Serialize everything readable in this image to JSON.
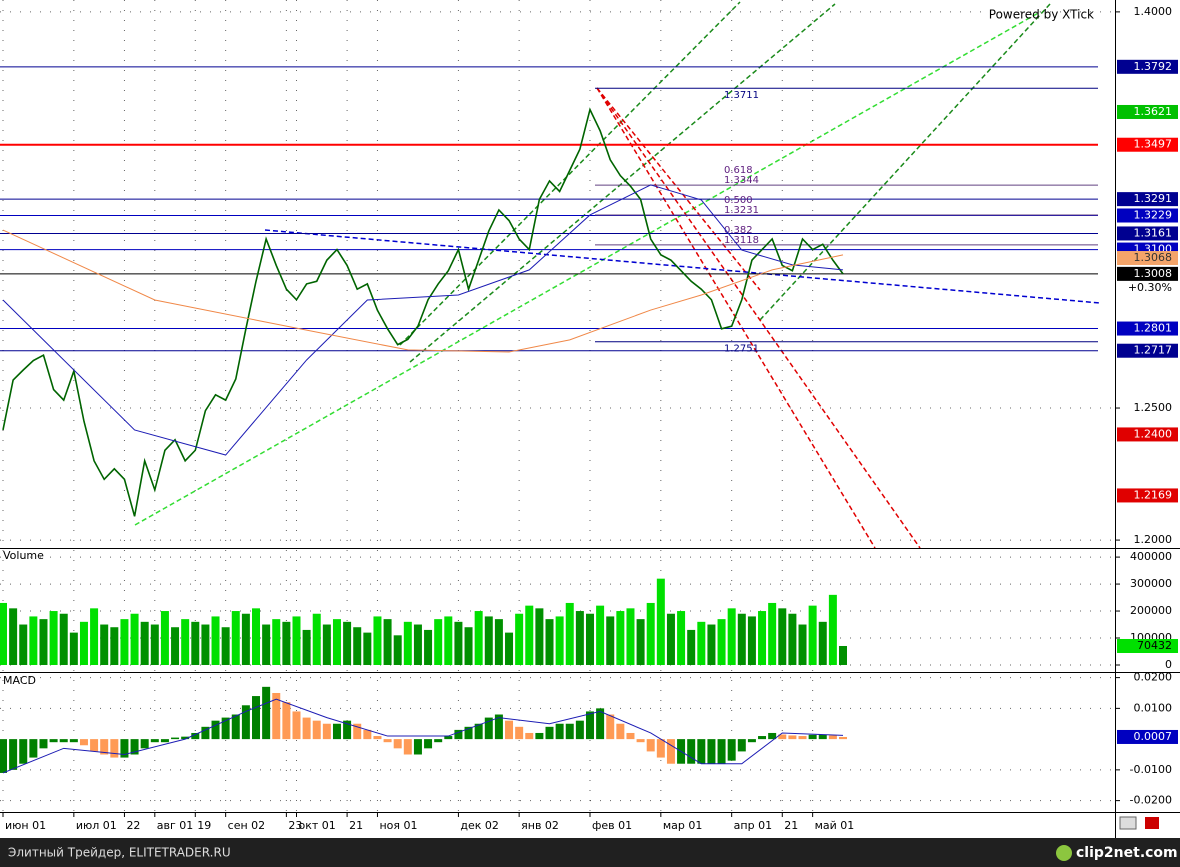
{
  "chart_data": [
    {
      "type": "line",
      "credit": "Powered by XTick",
      "categories": [
        "июн 01",
        null,
        null,
        null,
        null,
        null,
        null,
        "июл 01",
        null,
        null,
        null,
        null,
        "22",
        null,
        null,
        "авг 01",
        null,
        null,
        null,
        "19",
        null,
        null,
        "сен 02",
        null,
        null,
        null,
        null,
        null,
        "23",
        "окт 01",
        null,
        null,
        null,
        null,
        "21",
        null,
        null,
        "ноя 01",
        null,
        null,
        null,
        null,
        null,
        null,
        null,
        "дек 02",
        null,
        null,
        null,
        null,
        null,
        "янв 02",
        null,
        null,
        null,
        null,
        null,
        null,
        "фев 01",
        null,
        null,
        null,
        null,
        null,
        null,
        "мар 01",
        null,
        null,
        null,
        null,
        null,
        null,
        "апр 01",
        null,
        null,
        null,
        null,
        "21",
        null,
        null,
        "май 01",
        null,
        null,
        null
      ],
      "series": [
        {
          "color": "#006400",
          "values": [
            1.2417,
            1.2606,
            1.2644,
            1.268,
            1.27,
            1.257,
            1.253,
            1.264,
            1.245,
            1.23,
            1.223,
            1.227,
            1.223,
            1.209,
            1.23,
            1.219,
            1.234,
            1.238,
            1.23,
            1.234,
            1.249,
            1.255,
            1.253,
            1.261,
            1.28,
            1.298,
            1.314,
            1.304,
            1.295,
            1.291,
            1.297,
            1.298,
            1.306,
            1.31,
            1.304,
            1.295,
            1.297,
            1.287,
            1.28,
            1.274,
            1.276,
            1.281,
            1.291,
            1.297,
            1.302,
            1.31,
            1.295,
            1.306,
            1.317,
            1.325,
            1.321,
            1.314,
            1.31,
            1.329,
            1.336,
            1.332,
            1.34,
            1.348,
            1.363,
            1.355,
            1.344,
            1.338,
            1.334,
            1.329,
            1.314,
            1.308,
            1.306,
            1.302,
            1.298,
            1.295,
            1.291,
            1.28,
            1.281,
            1.291,
            1.306,
            1.31,
            1.314,
            1.304,
            1.302,
            1.314,
            1.31,
            1.312,
            1.306,
            1.3008
          ]
        },
        {
          "color": "#1c1cb4",
          "x": [
            0,
            13,
            22,
            30,
            36,
            45,
            52,
            58,
            64,
            69,
            73,
            78,
            83
          ],
          "values": [
            1.2909,
            1.2417,
            1.2322,
            1.2682,
            1.2909,
            1.2928,
            1.3023,
            1.3231,
            1.3345,
            1.3288,
            1.3098,
            1.3042,
            1.3023
          ]
        },
        {
          "color": "#f08848",
          "x": [
            0,
            15,
            25,
            30,
            40,
            50,
            56,
            64,
            69,
            76,
            83
          ],
          "values": [
            1.3174,
            1.2909,
            1.2833,
            1.2795,
            1.272,
            1.2712,
            1.2758,
            1.2871,
            1.2928,
            1.3023,
            1.308
          ]
        }
      ],
      "ylim": [
        1.197,
        1.4045
      ],
      "yticks": [
        {
          "value": 1.4,
          "label": "1.4000"
        },
        {
          "value": 1.25,
          "label": "1.2500"
        },
        {
          "value": 1.2,
          "label": "1.2000"
        }
      ],
      "levels": [
        {
          "value": 1.3792,
          "label": "1.3792",
          "color": "#000090",
          "line": true
        },
        {
          "value": 1.3621,
          "label": "1.3621",
          "color": "#00c000",
          "line": false
        },
        {
          "value": 1.3497,
          "label": "1.3497",
          "color": "#ff0000",
          "line": true
        },
        {
          "value": 1.3291,
          "label": "1.3291",
          "color": "#000090",
          "line": true
        },
        {
          "value": 1.3229,
          "label": "1.3229",
          "color": "#0000c0",
          "line": true
        },
        {
          "value": 1.3161,
          "label": "1.3161",
          "color": "#000090",
          "line": true
        },
        {
          "value": 1.31,
          "label": "1.3100",
          "color": "#0000c0",
          "line": true
        },
        {
          "value": 1.3068,
          "label": "1.3068",
          "color": "#f4a46a",
          "line": false
        },
        {
          "value": 1.3008,
          "label": "1.3008",
          "color": "#000000",
          "line": true
        },
        {
          "value": 1.2801,
          "label": "1.2801",
          "color": "#0000c0",
          "line": true
        },
        {
          "value": 1.2717,
          "label": "1.2717",
          "color": "#000090",
          "line": true
        },
        {
          "value": 1.24,
          "label": "1.2400",
          "color": "#e00000",
          "line": false
        },
        {
          "value": 1.2169,
          "label": "1.2169",
          "color": "#e00000",
          "line": false
        }
      ],
      "change": {
        "value": 0.3,
        "label": "+0.30%"
      },
      "fibonacci": [
        {
          "ratio": {
            "value": 0.618,
            "label": "0.618"
          },
          "price": 1.3344
        },
        {
          "ratio": {
            "value": 0.5,
            "label": "0.500"
          },
          "price": 1.3231
        },
        {
          "ratio": {
            "value": 0.382,
            "label": "0.382"
          },
          "price": 1.3118
        }
      ],
      "annotations": [
        {
          "price": 1.3711
        },
        {
          "price": 1.2751
        }
      ],
      "grid": true
    },
    {
      "type": "bar",
      "title": "Volume",
      "color": "#00e000",
      "values": [
        230000,
        210000,
        150000,
        180000,
        170000,
        200000,
        190000,
        120000,
        160000,
        210000,
        150000,
        140000,
        170000,
        190000,
        160000,
        150000,
        200000,
        140000,
        170000,
        160000,
        150000,
        180000,
        140000,
        200000,
        190000,
        210000,
        150000,
        170000,
        160000,
        180000,
        130000,
        190000,
        150000,
        170000,
        160000,
        140000,
        120000,
        180000,
        170000,
        110000,
        160000,
        150000,
        130000,
        170000,
        180000,
        160000,
        140000,
        200000,
        180000,
        170000,
        120000,
        190000,
        220000,
        210000,
        170000,
        180000,
        230000,
        200000,
        190000,
        220000,
        180000,
        200000,
        210000,
        170000,
        230000,
        320000,
        190000,
        200000,
        130000,
        160000,
        150000,
        170000,
        210000,
        190000,
        180000,
        200000,
        230000,
        210000,
        190000,
        150000,
        220000,
        160000,
        260000,
        70432
      ],
      "last": 70432,
      "ylim": [
        -26000,
        430000
      ],
      "yticks": [
        400000,
        300000,
        200000,
        100000,
        0
      ]
    },
    {
      "type": "bar",
      "title": "MACD",
      "values": [
        -0.011,
        -0.01,
        -0.008,
        -0.006,
        -0.003,
        -0.001,
        -0.001,
        -0.001,
        -0.002,
        -0.004,
        -0.005,
        -0.006,
        -0.006,
        -0.005,
        -0.003,
        -0.001,
        -0.001,
        0.0005,
        0.0008,
        0.002,
        0.004,
        0.006,
        0.007,
        0.008,
        0.011,
        0.014,
        0.017,
        0.015,
        0.012,
        0.009,
        0.007,
        0.006,
        0.005,
        0.005,
        0.006,
        0.005,
        0.003,
        0.001,
        -0.001,
        -0.003,
        -0.005,
        -0.005,
        -0.003,
        -0.001,
        0.001,
        0.003,
        0.004,
        0.005,
        0.007,
        0.008,
        0.006,
        0.004,
        0.002,
        0.002,
        0.004,
        0.005,
        0.005,
        0.006,
        0.009,
        0.01,
        0.008,
        0.005,
        0.002,
        -0.001,
        -0.004,
        -0.006,
        -0.008,
        -0.008,
        -0.008,
        -0.008,
        -0.008,
        -0.008,
        -0.007,
        -0.004,
        -0.001,
        0.001,
        0.002,
        0.0015,
        0.0012,
        0.001,
        0.0014,
        0.0015,
        0.0012,
        0.0007
      ],
      "signal": {
        "color": "#1c1cb4",
        "x": [
          0,
          6,
          12,
          18,
          24,
          27,
          32,
          38,
          44,
          49,
          54,
          59,
          64,
          69,
          73,
          77,
          83
        ],
        "values": [
          -0.011,
          -0.003,
          -0.005,
          0,
          0.009,
          0.013,
          0.007,
          0.001,
          0.001,
          0.007,
          0.005,
          0.009,
          0.002,
          -0.008,
          -0.008,
          0.002,
          0.0012
        ]
      },
      "last": 0.0007,
      "ylim": [
        -0.0237,
        0.0215
      ],
      "yticks": [
        {
          "value": 0.02,
          "label": "0.0200"
        },
        {
          "value": 0.01,
          "label": "0.0100"
        },
        {
          "value": -0.01,
          "label": "-0.0100"
        },
        {
          "value": -0.02,
          "label": "-0.0200"
        }
      ]
    }
  ],
  "footer": {
    "text": "Элитный Трейдер, ELITETRADER.RU",
    "logo": "clip2net.com"
  }
}
